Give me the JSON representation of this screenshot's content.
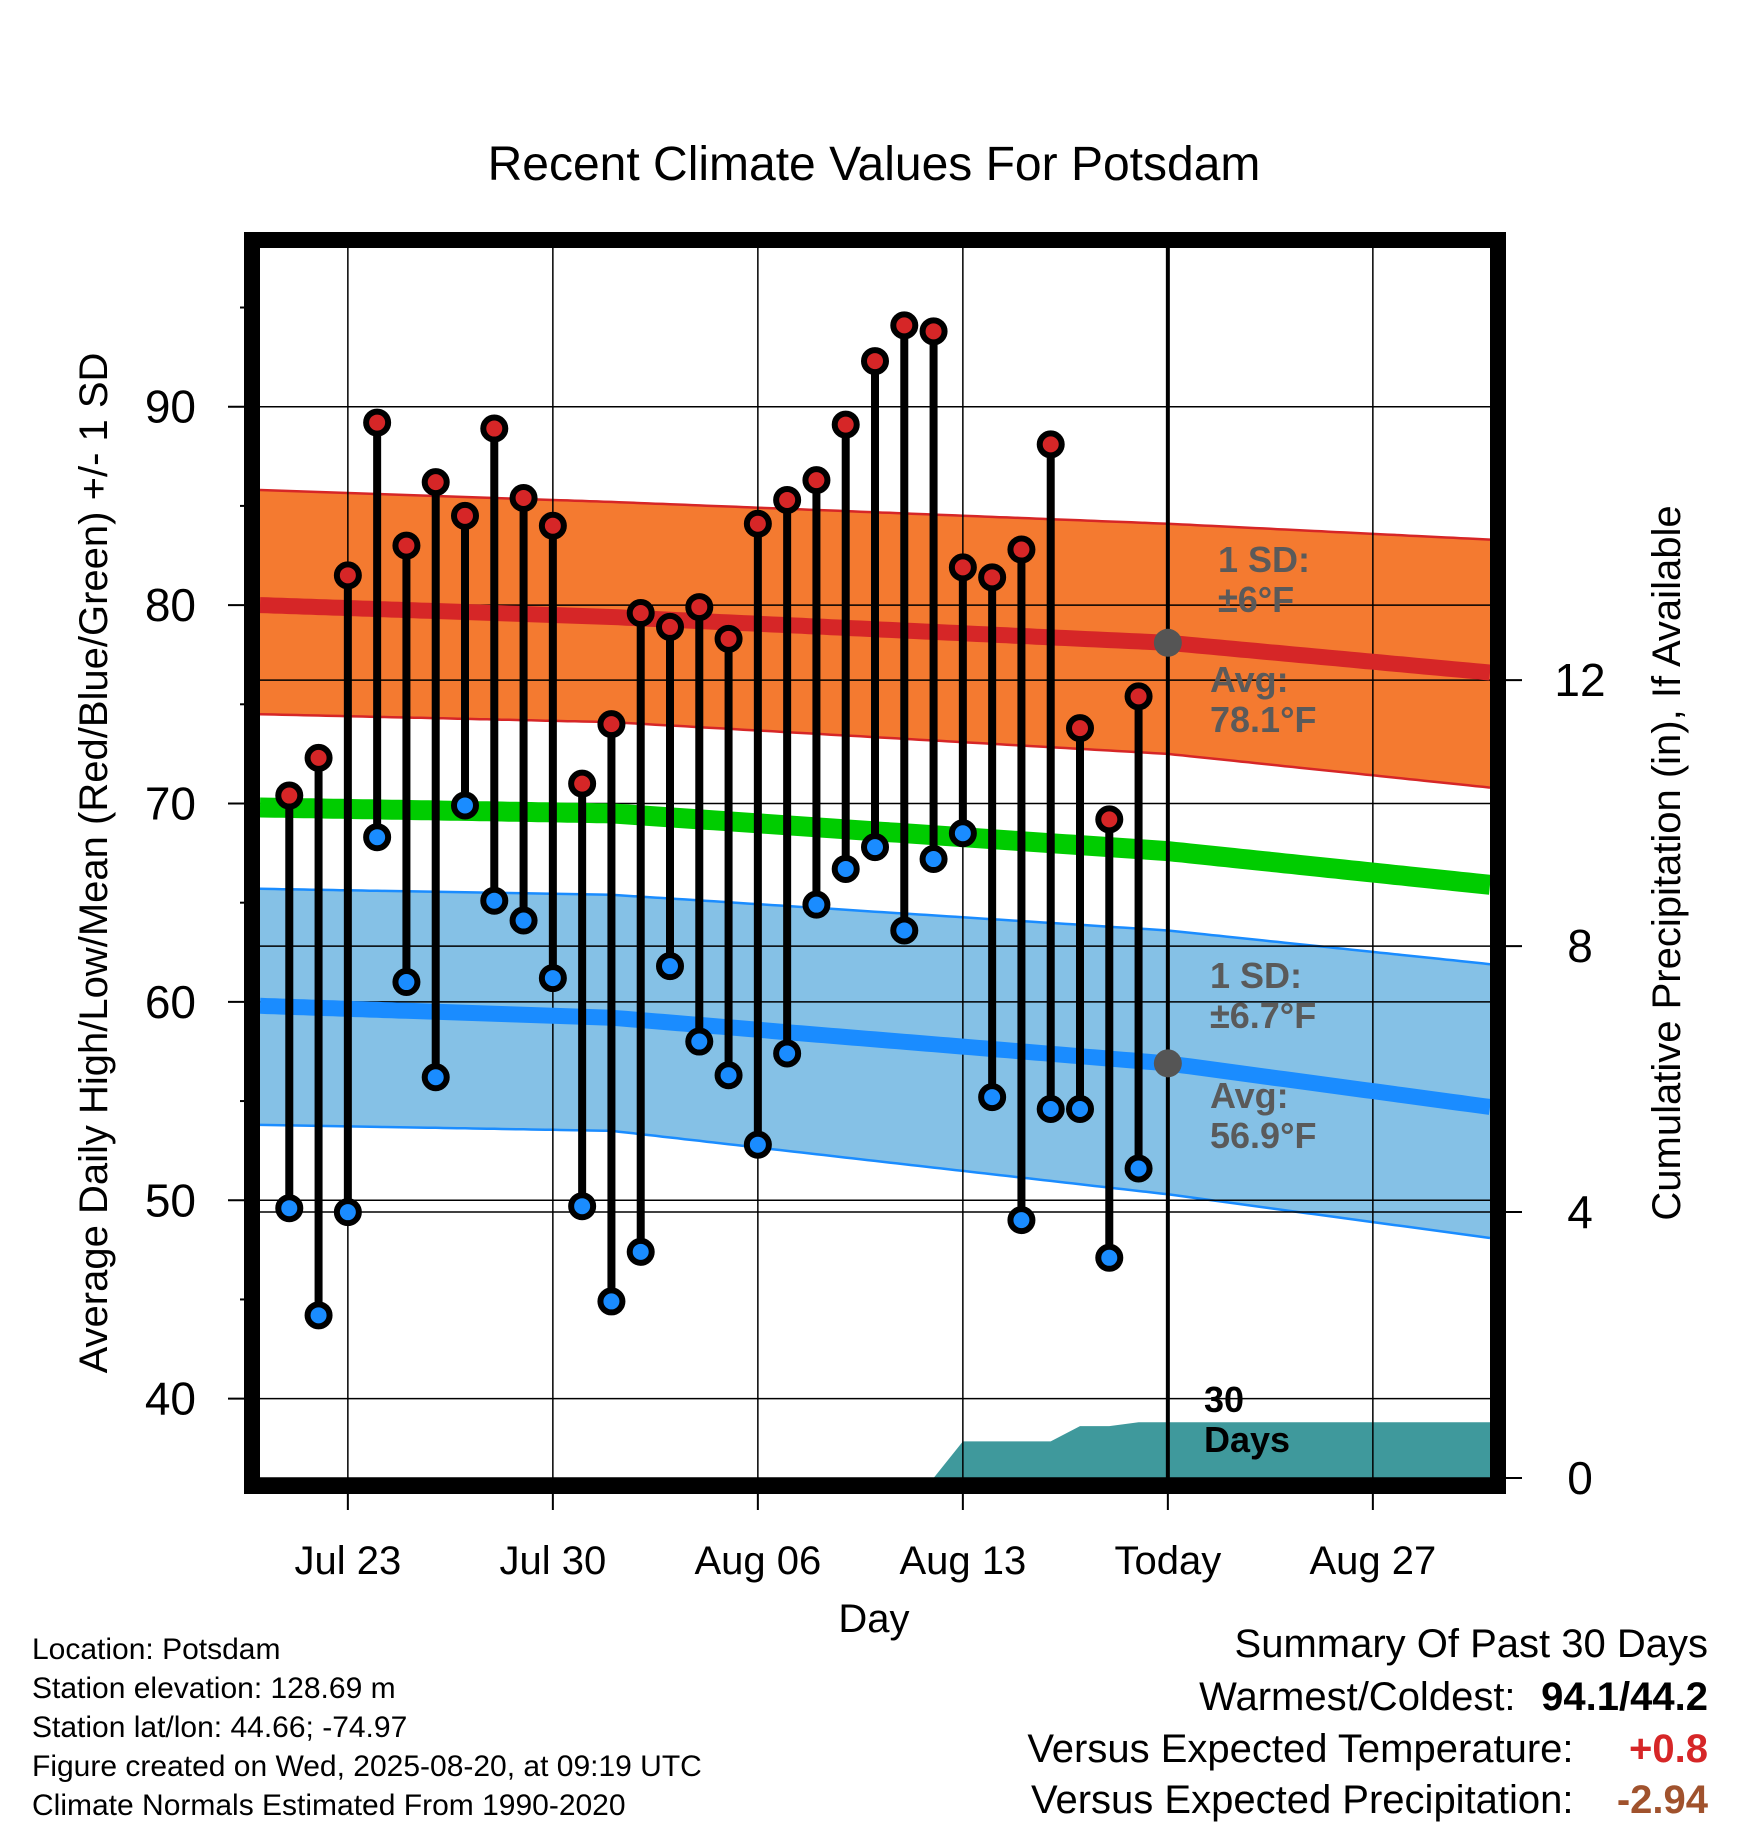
{
  "chart_data": {
    "type": "line",
    "title": "Recent Climate Values For Potsdam",
    "xlabel": "Day",
    "ylabel": "Average Daily High/Low/Mean (Red/Blue/Green) +/- 1 SD",
    "y2label": "Cumulative Precipitation (in), If Available",
    "ylim": [
      36,
      98
    ],
    "y2lim": [
      0,
      18.5
    ],
    "yticks": [
      40,
      50,
      60,
      70,
      80,
      90
    ],
    "y2ticks": [
      0,
      4,
      8,
      12
    ],
    "xlim": [
      "2025-07-20",
      "2025-08-31"
    ],
    "xticks": [
      {
        "date": "2025-07-23",
        "label": "Jul 23"
      },
      {
        "date": "2025-07-30",
        "label": "Jul 30"
      },
      {
        "date": "2025-08-06",
        "label": "Aug 06"
      },
      {
        "date": "2025-08-13",
        "label": "Aug 13"
      },
      {
        "date": "2025-08-20",
        "label": "Today"
      },
      {
        "date": "2025-08-27",
        "label": "Aug 27"
      }
    ],
    "today": "2025-08-20",
    "grid": true,
    "daily": [
      {
        "date": "2025-07-21",
        "high": 70.4,
        "low": 49.6
      },
      {
        "date": "2025-07-22",
        "high": 72.3,
        "low": 44.2
      },
      {
        "date": "2025-07-23",
        "high": 81.5,
        "low": 49.4
      },
      {
        "date": "2025-07-24",
        "high": 89.2,
        "low": 68.3
      },
      {
        "date": "2025-07-25",
        "high": 83.0,
        "low": 61.0
      },
      {
        "date": "2025-07-26",
        "high": 86.2,
        "low": 56.2
      },
      {
        "date": "2025-07-27",
        "high": 84.5,
        "low": 69.9
      },
      {
        "date": "2025-07-28",
        "high": 88.9,
        "low": 65.1
      },
      {
        "date": "2025-07-29",
        "high": 85.4,
        "low": 64.1
      },
      {
        "date": "2025-07-30",
        "high": 84.0,
        "low": 61.2
      },
      {
        "date": "2025-07-31",
        "high": 71.0,
        "low": 49.7
      },
      {
        "date": "2025-08-01",
        "high": 74.0,
        "low": 44.9
      },
      {
        "date": "2025-08-02",
        "high": 79.6,
        "low": 47.4
      },
      {
        "date": "2025-08-03",
        "high": 78.9,
        "low": 61.8
      },
      {
        "date": "2025-08-04",
        "high": 79.9,
        "low": 58.0
      },
      {
        "date": "2025-08-05",
        "high": 78.3,
        "low": 56.3
      },
      {
        "date": "2025-08-06",
        "high": 84.1,
        "low": 52.8
      },
      {
        "date": "2025-08-07",
        "high": 85.3,
        "low": 57.4
      },
      {
        "date": "2025-08-08",
        "high": 86.3,
        "low": 64.9
      },
      {
        "date": "2025-08-09",
        "high": 89.1,
        "low": 66.7
      },
      {
        "date": "2025-08-10",
        "high": 92.3,
        "low": 67.8
      },
      {
        "date": "2025-08-11",
        "high": 94.1,
        "low": 63.6
      },
      {
        "date": "2025-08-12",
        "high": 93.8,
        "low": 67.2
      },
      {
        "date": "2025-08-13",
        "high": 81.9,
        "low": 68.5
      },
      {
        "date": "2025-08-14",
        "high": 81.4,
        "low": 55.2
      },
      {
        "date": "2025-08-15",
        "high": 82.8,
        "low": 49.0
      },
      {
        "date": "2025-08-16",
        "high": 88.1,
        "low": 54.6
      },
      {
        "date": "2025-08-17",
        "high": 73.8,
        "low": 54.6
      },
      {
        "date": "2025-08-18",
        "high": 69.2,
        "low": 47.1
      },
      {
        "date": "2025-08-19",
        "high": 75.4,
        "low": 51.6
      }
    ],
    "normals": {
      "high_avg": [
        {
          "date": "2025-07-20",
          "value": 80.0
        },
        {
          "date": "2025-08-01",
          "value": 79.4
        },
        {
          "date": "2025-08-20",
          "value": 78.1
        },
        {
          "date": "2025-08-31",
          "value": 76.6
        }
      ],
      "high_sd_upper": [
        {
          "date": "2025-07-20",
          "value": 85.8
        },
        {
          "date": "2025-08-01",
          "value": 85.2
        },
        {
          "date": "2025-08-20",
          "value": 84.1
        },
        {
          "date": "2025-08-31",
          "value": 83.3
        }
      ],
      "high_sd_lower": [
        {
          "date": "2025-07-20",
          "value": 74.5
        },
        {
          "date": "2025-08-01",
          "value": 74.1
        },
        {
          "date": "2025-08-20",
          "value": 72.5
        },
        {
          "date": "2025-08-31",
          "value": 70.8
        }
      ],
      "mean_avg": [
        {
          "date": "2025-07-20",
          "value": 69.8
        },
        {
          "date": "2025-08-01",
          "value": 69.5
        },
        {
          "date": "2025-08-20",
          "value": 67.6
        },
        {
          "date": "2025-08-31",
          "value": 65.9
        }
      ],
      "low_avg": [
        {
          "date": "2025-07-20",
          "value": 59.8
        },
        {
          "date": "2025-08-01",
          "value": 59.2
        },
        {
          "date": "2025-08-20",
          "value": 56.9
        },
        {
          "date": "2025-08-31",
          "value": 54.7
        }
      ],
      "low_sd_upper": [
        {
          "date": "2025-07-20",
          "value": 65.7
        },
        {
          "date": "2025-08-01",
          "value": 65.4
        },
        {
          "date": "2025-08-20",
          "value": 63.6
        },
        {
          "date": "2025-08-31",
          "value": 61.9
        }
      ],
      "low_sd_lower": [
        {
          "date": "2025-07-20",
          "value": 53.8
        },
        {
          "date": "2025-08-01",
          "value": 53.5
        },
        {
          "date": "2025-08-20",
          "value": 50.3
        },
        {
          "date": "2025-08-31",
          "value": 48.1
        }
      ]
    },
    "precipitation_cumulative": [
      {
        "date": "2025-08-12",
        "value": 0.0
      },
      {
        "date": "2025-08-13",
        "value": 0.55
      },
      {
        "date": "2025-08-16",
        "value": 0.55
      },
      {
        "date": "2025-08-17",
        "value": 0.78
      },
      {
        "date": "2025-08-18",
        "value": 0.78
      },
      {
        "date": "2025-08-19",
        "value": 0.84
      },
      {
        "date": "2025-08-31",
        "value": 0.84
      }
    ],
    "annotations": {
      "high_sd": [
        "1 SD:",
        "±6°F"
      ],
      "high_avg": [
        "Avg:",
        "78.1°F"
      ],
      "low_sd": [
        "1 SD:",
        "±6.7°F"
      ],
      "low_avg": [
        "Avg:",
        "56.9°F"
      ],
      "period": [
        "30",
        "Days"
      ]
    },
    "colors": {
      "high_band": "#f47a30",
      "high_line": "#d62627",
      "mean_line": "#00cc00",
      "low_band": "#85c1e6",
      "low_line": "#1a8cff",
      "high_point": "#d62627",
      "low_point": "#1a8cff",
      "precip_fill": "#3f999c",
      "annotation_text": "#5a5a5a"
    }
  },
  "info": {
    "location": "Location: Potsdam",
    "elevation": "Station elevation: 128.69 m",
    "latlon": "Station lat/lon: 44.66; -74.97",
    "created": "Figure created on Wed, 2025-08-20, at 09:19 UTC",
    "normals": "Climate Normals Estimated From 1990-2020"
  },
  "summary": {
    "title": "Summary Of Past 30 Days",
    "warmest_label": "Warmest/Coldest:",
    "warmest_value": "94.1/44.2",
    "temp_label": "Versus Expected Temperature:",
    "temp_value": "+0.8",
    "temp_color": "#d62627",
    "precip_label": "Versus Expected Precipitation:",
    "precip_value": "-2.94",
    "precip_color": "#a0522d"
  }
}
